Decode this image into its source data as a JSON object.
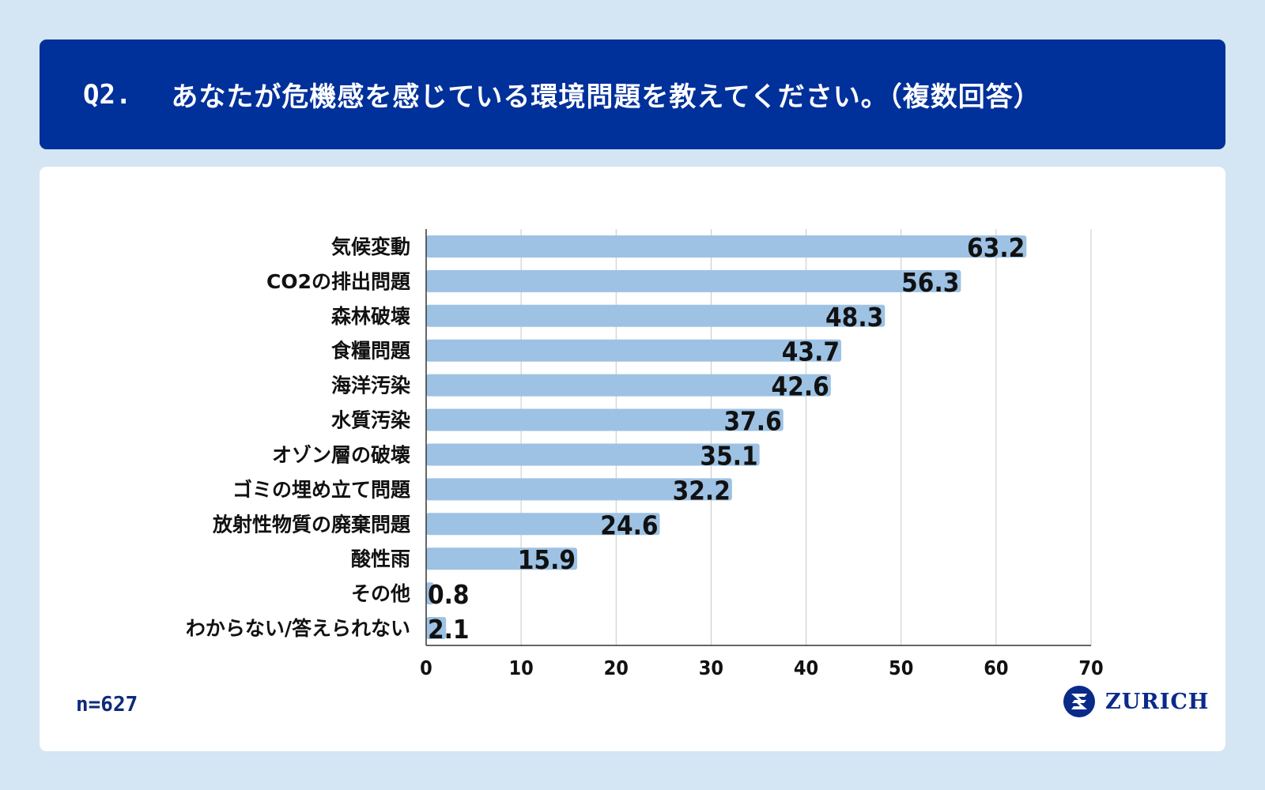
{
  "header": {
    "question_number": "Q2.",
    "question_text": "あなたが危機感を感じている環境問題を教えてください。（複数回答）"
  },
  "footer": {
    "sample_size": "n=627",
    "brand_name": "ZURICH"
  },
  "colors": {
    "header_bg": "#00309a",
    "page_bg": "#d4e5f3",
    "bar": "#9dc2e4",
    "grid": "#c8c8c8",
    "text": "#111111"
  },
  "chart_data": {
    "type": "bar",
    "orientation": "horizontal",
    "title": "",
    "xlabel": "",
    "ylabel": "",
    "categories": [
      "気候変動",
      "CO2の排出問題",
      "森林破壊",
      "食糧問題",
      "海洋汚染",
      "水質汚染",
      "オゾン層の破壊",
      "ゴミの埋め立て問題",
      "放射性物質の廃棄問題",
      "酸性雨",
      "その他",
      "わからない/答えられない"
    ],
    "values": [
      63.2,
      56.3,
      48.3,
      43.7,
      42.6,
      37.6,
      35.1,
      32.2,
      24.6,
      15.9,
      0.8,
      2.1
    ],
    "value_labels": [
      "63.2",
      "56.3",
      "48.3",
      "43.7",
      "42.6",
      "37.6",
      "35.1",
      "32.2",
      "24.6",
      "15.9",
      "0.8",
      "2.1"
    ],
    "xlim": [
      0,
      70
    ],
    "xticks": [
      0,
      10,
      20,
      30,
      40,
      50,
      60,
      70
    ],
    "grid": true,
    "legend": "none"
  }
}
